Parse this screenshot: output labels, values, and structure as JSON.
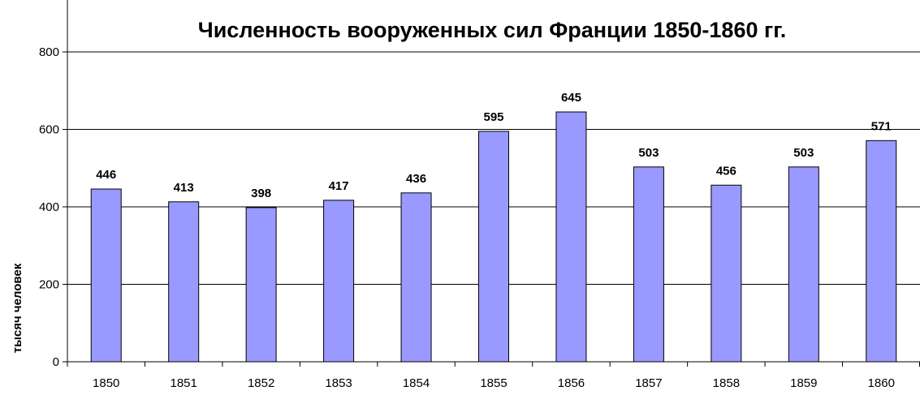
{
  "chart_data": {
    "type": "bar",
    "title": "Численность вооруженных сил Франции 1850-1860 гг.",
    "xlabel": "",
    "ylabel": "тысяч человек",
    "categories": [
      "1850",
      "1851",
      "1852",
      "1853",
      "1854",
      "1855",
      "1856",
      "1857",
      "1858",
      "1859",
      "1860"
    ],
    "values": [
      446,
      413,
      398,
      417,
      436,
      595,
      645,
      503,
      456,
      503,
      571
    ],
    "data_labels": [
      "446",
      "413",
      "398",
      "417",
      "436",
      "595",
      "645",
      "503",
      "456",
      "503",
      "571"
    ],
    "ylim": [
      0,
      800
    ],
    "yticks": [
      0,
      200,
      400,
      600,
      800
    ],
    "ytick_labels": [
      "0",
      "200",
      "400",
      "600",
      "800"
    ],
    "grid": true,
    "legend": "none",
    "colors": {
      "bar_fill": "#9999ff",
      "bar_stroke": "#000000",
      "gridline": "#000000",
      "axis": "#000000",
      "background": "#ffffff"
    }
  }
}
